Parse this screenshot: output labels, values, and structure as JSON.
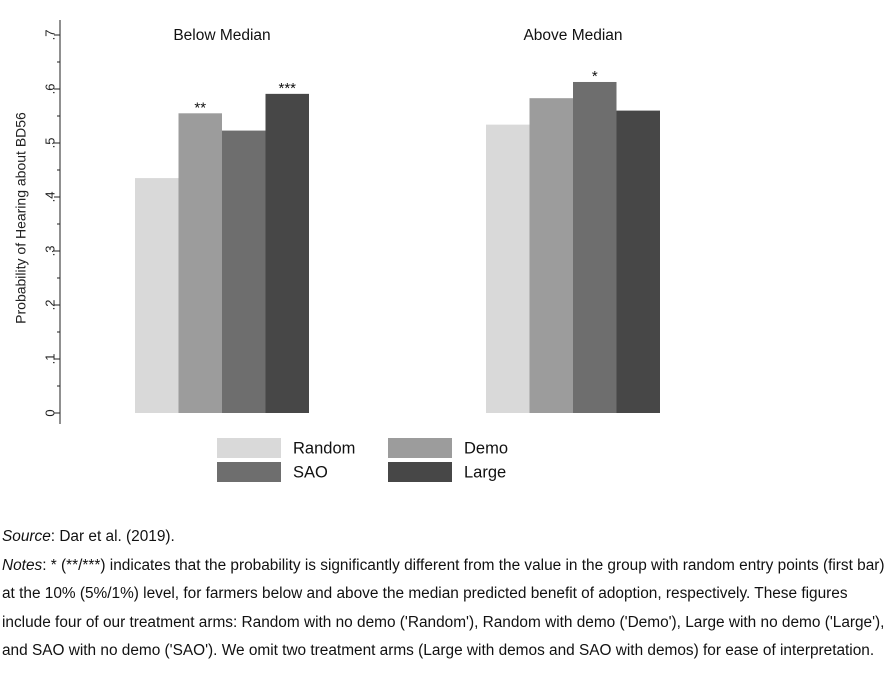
{
  "chart_data": {
    "type": "bar",
    "ylabel": "Probability of Hearing about BD56",
    "ylim": [
      0,
      0.7
    ],
    "yticks": [
      {
        "value": 0,
        "label": "0"
      },
      {
        "value": 0.1,
        "label": ".1"
      },
      {
        "value": 0.2,
        "label": ".2"
      },
      {
        "value": 0.3,
        "label": ".3"
      },
      {
        "value": 0.4,
        "label": ".4"
      },
      {
        "value": 0.5,
        "label": ".5"
      },
      {
        "value": 0.6,
        "label": ".6"
      },
      {
        "value": 0.7,
        "label": ".7"
      }
    ],
    "panels": [
      "Below Median",
      "Above Median"
    ],
    "series": [
      {
        "name": "Random",
        "color": "#d9d9d9",
        "values": [
          0.435,
          0.534
        ],
        "stars": [
          "",
          ""
        ]
      },
      {
        "name": "Demo",
        "color": "#9c9c9c",
        "values": [
          0.555,
          0.583
        ],
        "stars": [
          "**",
          ""
        ]
      },
      {
        "name": "SAO",
        "color": "#6e6e6e",
        "values": [
          0.523,
          0.613
        ],
        "stars": [
          "",
          "*"
        ]
      },
      {
        "name": "Large",
        "color": "#474747",
        "values": [
          0.591,
          0.56
        ],
        "stars": [
          "***",
          ""
        ]
      }
    ],
    "legend": {
      "placement": "bottom",
      "columns": 2
    }
  },
  "notes": {
    "source_label": "Source",
    "source_text": ": Dar et al. (2019).",
    "notes_label": "Notes",
    "notes_text": ": * (**/***) indicates that the probability is significantly different from the value in the group with random entry points (first bar) at the 10% (5%/1%) level, for farmers below and above the median predicted benefit of adoption, respectively. These figures include four of our treatment arms: Random with no demo ('Random'), Random with demo ('Demo'), Large with no demo ('Large'), and SAO with no demo ('SAO'). We omit two treatment arms (Large with demos and SAO with demos) for ease of interpretation."
  }
}
